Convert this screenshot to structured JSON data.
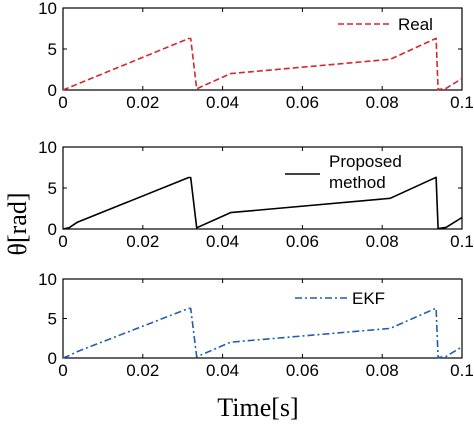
{
  "figure": {
    "ylabel": "θ[rad]",
    "xlabel": "Time[s]"
  },
  "chart_data": [
    {
      "type": "line",
      "xlim": [
        0,
        0.1
      ],
      "ylim": [
        0,
        10
      ],
      "x_ticks": [
        "0",
        "0.02",
        "0.04",
        "0.06",
        "0.08",
        "0.1"
      ],
      "y_ticks": [
        "0",
        "5",
        "10"
      ],
      "grid": false,
      "legend_position": "top-right",
      "series": [
        {
          "name": "Real",
          "color": "#d7262e",
          "style": "dashed",
          "x": [
            0,
            0.0315,
            0.032,
            0.0335,
            0.042,
            0.082,
            0.0935,
            0.094,
            0.096,
            0.1
          ],
          "y": [
            0,
            6.28,
            6.28,
            0.15,
            2.0,
            3.75,
            6.3,
            0.05,
            0.2,
            1.4
          ]
        }
      ]
    },
    {
      "type": "line",
      "xlim": [
        0,
        0.1
      ],
      "ylim": [
        0,
        10
      ],
      "x_ticks": [
        "0",
        "0.02",
        "0.04",
        "0.06",
        "0.08",
        "0.1"
      ],
      "y_ticks": [
        "0",
        "5",
        "10"
      ],
      "grid": false,
      "legend_position": "top-right",
      "series": [
        {
          "name_lines": [
            "Proposed",
            "method"
          ],
          "color": "#000000",
          "style": "solid",
          "x": [
            0,
            0.0015,
            0.0035,
            0.0315,
            0.032,
            0.0335,
            0.042,
            0.082,
            0.0935,
            0.094,
            0.096,
            0.1
          ],
          "y": [
            0,
            0.15,
            0.8,
            6.28,
            6.28,
            0.15,
            2.0,
            3.75,
            6.3,
            0.05,
            0.2,
            1.4
          ]
        }
      ]
    },
    {
      "type": "line",
      "xlim": [
        0,
        0.1
      ],
      "ylim": [
        0,
        10
      ],
      "x_ticks": [
        "0",
        "0.02",
        "0.04",
        "0.06",
        "0.08",
        "0.1"
      ],
      "y_ticks": [
        "0",
        "5",
        "10"
      ],
      "grid": false,
      "legend_position": "top-left",
      "series": [
        {
          "name": "EKF",
          "color": "#1f5fb0",
          "style": "dash-dot",
          "x": [
            0,
            0.0015,
            0.0035,
            0.0315,
            0.032,
            0.0335,
            0.042,
            0.082,
            0.0935,
            0.094,
            0.096,
            0.1
          ],
          "y": [
            0,
            0.3,
            0.8,
            6.28,
            6.28,
            0.15,
            2.0,
            3.75,
            6.3,
            0.05,
            0.2,
            1.4
          ]
        }
      ]
    }
  ]
}
